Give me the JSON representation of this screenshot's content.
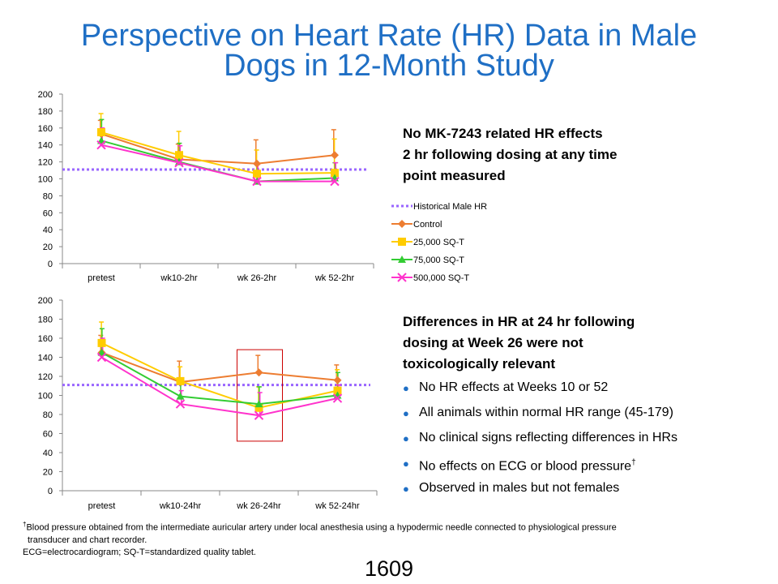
{
  "title_lines": [
    "Perspective on Heart Rate (HR) Data in Male",
    "Dogs in 12-Month Study"
  ],
  "colors": {
    "title": "#1f6fc5",
    "historical": "#9966ff",
    "control": "#ed7d31",
    "sqt25000": "#ffcc00",
    "sqt75000": "#33cc33",
    "sqt500000": "#ff33cc",
    "highlight_box": "#cc0000"
  },
  "callout_top": [
    "No MK-7243 related HR effects",
    "2 hr following dosing at any time",
    "point measured"
  ],
  "callout_bottom": [
    "Differences in HR at 24 hr following",
    "dosing at Week 26 were not",
    "toxicologically relevant"
  ],
  "bullets": [
    {
      "text": "No HR effects at Weeks 10 or 52",
      "sup": ""
    },
    {
      "text": "All animals within normal HR range (45-179)",
      "sup": ""
    },
    {
      "text": "No clinical signs reflecting differences in HRs",
      "sup": ""
    },
    {
      "text": "No effects on ECG or blood pressure",
      "sup": "†"
    },
    {
      "text": "Observed in males but not females",
      "sup": ""
    }
  ],
  "footnote": {
    "dagger": "†",
    "line1": "Blood pressure obtained from the intermediate auricular artery under local anesthesia using a hypodermic needle connected to physiological pressure",
    "line2": "transducer and chart recorder.",
    "line3": "ECG=electrocardiogram; SQ-T=standardized quality tablet."
  },
  "page_number": "1609",
  "chart_data": [
    {
      "type": "line",
      "categories": [
        "pretest",
        "wk10-2hr",
        "wk 26-2hr",
        "wk 52-2hr"
      ],
      "ylim": [
        0,
        200
      ],
      "yticks": [
        0,
        20,
        40,
        60,
        80,
        100,
        120,
        140,
        160,
        180,
        200
      ],
      "reference_line": {
        "name": "Historical Male HR",
        "value": 111
      },
      "legend": [
        "Historical Male HR",
        "Control",
        "25,000 SQ-T",
        "75,000 SQ-T",
        "500,000 SQ-T"
      ],
      "legend_position": "right",
      "series": [
        {
          "name": "Control",
          "marker": "diamond",
          "values": [
            153,
            123,
            118,
            128
          ],
          "err_plus": [
            16,
            18,
            28,
            30
          ]
        },
        {
          "name": "25,000 SQ-T",
          "marker": "square",
          "values": [
            155,
            128,
            106,
            107
          ],
          "err_plus": [
            22,
            28,
            28,
            40
          ]
        },
        {
          "name": "75,000 SQ-T",
          "marker": "triangle",
          "values": [
            145,
            120,
            97,
            101
          ],
          "err_plus": [
            25,
            22,
            20,
            18
          ]
        },
        {
          "name": "500,000 SQ-T",
          "marker": "x",
          "values": [
            140,
            119,
            97,
            97
          ],
          "err_plus": [
            20,
            20,
            20,
            22
          ]
        }
      ]
    },
    {
      "type": "line",
      "categories": [
        "pretest",
        "wk10-24hr",
        "wk 26-24hr",
        "wk 52-24hr"
      ],
      "ylim": [
        0,
        200
      ],
      "yticks": [
        0,
        20,
        40,
        60,
        80,
        100,
        120,
        140,
        160,
        180,
        200
      ],
      "reference_line": {
        "name": "Historical Male HR",
        "value": 111
      },
      "highlight_category": "wk 26-24hr",
      "series": [
        {
          "name": "Control",
          "marker": "diamond",
          "values": [
            145,
            114,
            124,
            116
          ],
          "err_plus": [
            18,
            22,
            18,
            16
          ]
        },
        {
          "name": "25,000 SQ-T",
          "marker": "square",
          "values": [
            155,
            115,
            87,
            105
          ],
          "err_plus": [
            22,
            15,
            22,
            22
          ]
        },
        {
          "name": "75,000 SQ-T",
          "marker": "triangle",
          "values": [
            145,
            99,
            91,
            100
          ],
          "err_plus": [
            25,
            14,
            18,
            24
          ]
        },
        {
          "name": "500,000 SQ-T",
          "marker": "x",
          "values": [
            140,
            91,
            79,
            97
          ],
          "err_plus": [
            20,
            14,
            24,
            14
          ]
        }
      ]
    }
  ]
}
